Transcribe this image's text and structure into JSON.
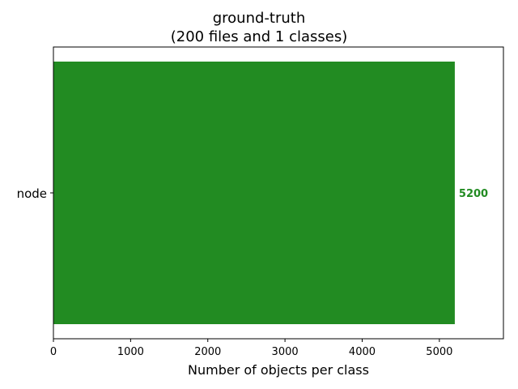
{
  "chart_data": {
    "type": "bar",
    "orientation": "horizontal",
    "title_line1": "ground-truth",
    "title_line2": "(200 files and 1 classes)",
    "xlabel": "Number of objects per class",
    "ylabel": "",
    "categories": [
      "node"
    ],
    "values": [
      5200
    ],
    "value_labels": [
      "5200"
    ],
    "xlim": [
      0,
      5830
    ],
    "xticks": [
      0,
      1000,
      2000,
      3000,
      4000,
      5000
    ],
    "xtick_labels": [
      "0",
      "1000",
      "2000",
      "3000",
      "4000",
      "5000"
    ],
    "grid": false,
    "bar_color": "#228b22",
    "label_color": "#228b22"
  }
}
